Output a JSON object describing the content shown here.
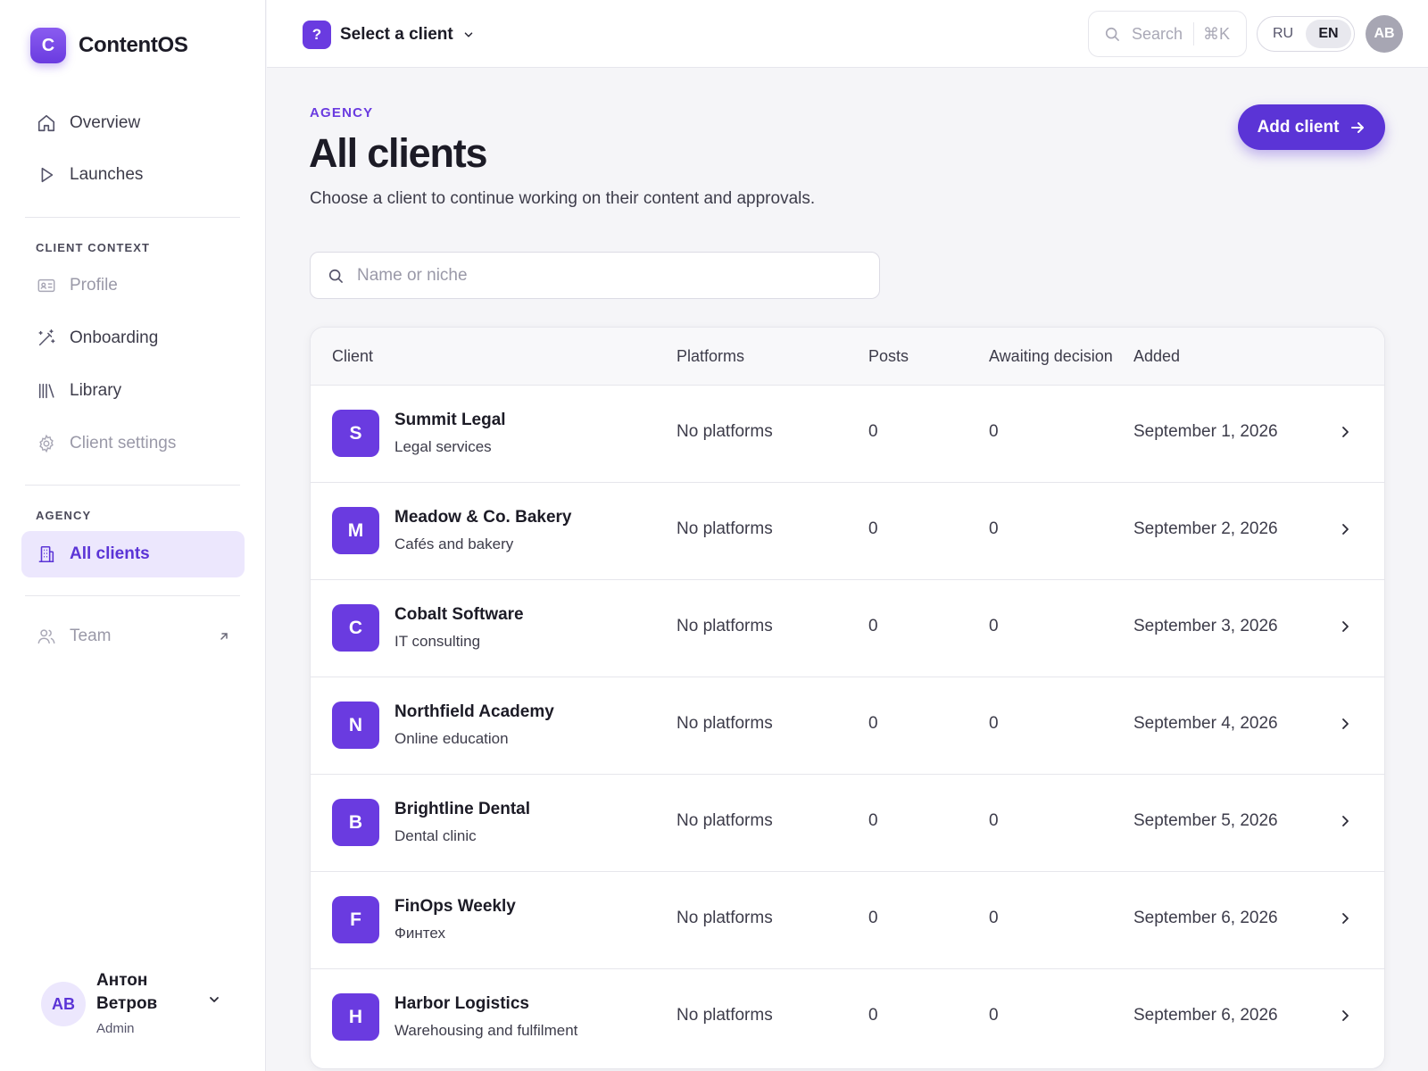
{
  "brand": {
    "logo_letter": "C",
    "name": "ContentOS"
  },
  "sidebar": {
    "nav": [
      {
        "label": "Overview",
        "icon": "home-icon"
      },
      {
        "label": "Launches",
        "icon": "play-icon"
      }
    ],
    "client_context_label": "CLIENT CONTEXT",
    "client_context": [
      {
        "label": "Profile",
        "icon": "id-card-icon"
      },
      {
        "label": "Onboarding",
        "icon": "magic-wand-icon"
      },
      {
        "label": "Library",
        "icon": "library-icon"
      },
      {
        "label": "Client settings",
        "icon": "gear-icon"
      }
    ],
    "agency_label": "AGENCY",
    "agency": [
      {
        "label": "All clients",
        "icon": "building-icon",
        "active": true
      }
    ],
    "team": {
      "label": "Team",
      "icon": "users-icon"
    }
  },
  "user": {
    "initials": "AB",
    "name": "Антон Ветров",
    "role": "Admin"
  },
  "topbar": {
    "client_badge": "?",
    "client_select_label": "Select a client",
    "search_placeholder": "Search",
    "search_shortcut": "⌘K",
    "languages": [
      {
        "code": "RU",
        "selected": false
      },
      {
        "code": "EN",
        "selected": true
      }
    ],
    "avatar_initials": "AB"
  },
  "page": {
    "eyebrow": "AGENCY",
    "title": "All clients",
    "subtitle": "Choose a client to continue working on their content and approvals.",
    "add_button_label": "Add client",
    "filter_placeholder": "Name or niche"
  },
  "table": {
    "columns": [
      "Client",
      "Platforms",
      "Posts",
      "Awaiting decision",
      "Added"
    ],
    "rows": [
      {
        "initial": "S",
        "name": "Summit Legal",
        "niche": "Legal services",
        "platforms": "No platforms",
        "posts": "0",
        "awaiting": "0",
        "added": "September 1, 2026"
      },
      {
        "initial": "M",
        "name": "Meadow & Co. Bakery",
        "niche": "Cafés and bakery",
        "platforms": "No platforms",
        "posts": "0",
        "awaiting": "0",
        "added": "September 2, 2026"
      },
      {
        "initial": "C",
        "name": "Cobalt Software",
        "niche": "IT consulting",
        "platforms": "No platforms",
        "posts": "0",
        "awaiting": "0",
        "added": "September 3, 2026"
      },
      {
        "initial": "N",
        "name": "Northfield Academy",
        "niche": "Online education",
        "platforms": "No platforms",
        "posts": "0",
        "awaiting": "0",
        "added": "September 4, 2026"
      },
      {
        "initial": "B",
        "name": "Brightline Dental",
        "niche": "Dental clinic",
        "platforms": "No platforms",
        "posts": "0",
        "awaiting": "0",
        "added": "September 5, 2026"
      },
      {
        "initial": "F",
        "name": "FinOps Weekly",
        "niche": "Финтех",
        "platforms": "No platforms",
        "posts": "0",
        "awaiting": "0",
        "added": "September 6, 2026"
      },
      {
        "initial": "H",
        "name": "Harbor Logistics",
        "niche": "Warehousing and fulfilment",
        "platforms": "No platforms",
        "posts": "0",
        "awaiting": "0",
        "added": "September 6, 2026"
      }
    ]
  },
  "colors": {
    "accent": "#5b34d6",
    "accent_soft": "#ece7fd",
    "avatar": "#6a3be0"
  }
}
